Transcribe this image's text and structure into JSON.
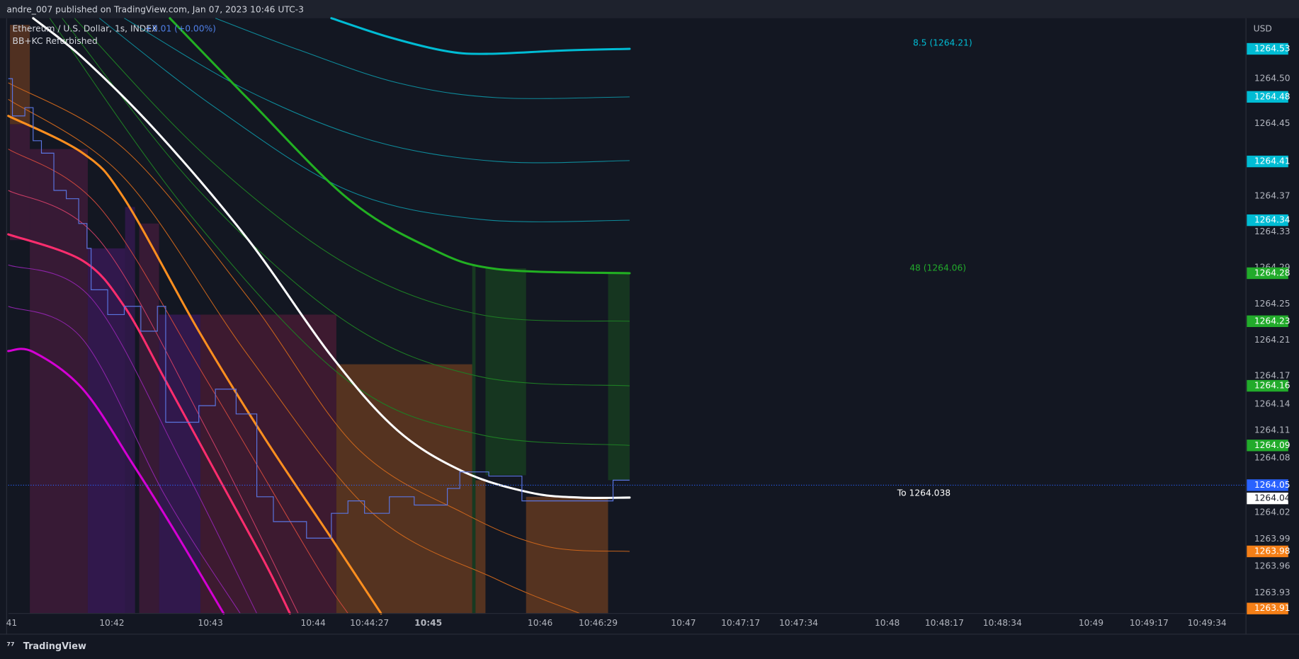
{
  "header": {
    "text": "andre_007 published on TradingView.com, Jan 07, 2023 10:46 UTC-3"
  },
  "legend": {
    "symbol": "Ethereum / U.S. Dollar, 1s, INDEX",
    "change": "+0.01 (+0.00%)",
    "indicator": "BB+KC Refurbished"
  },
  "annotations": [
    "8.5 (1264.21)",
    "48 (1264.06)",
    "To 1264.038"
  ],
  "price_axis": {
    "currency": "USD",
    "labels": [
      "1264.50",
      "1264.45",
      "1264.37",
      "1264.33",
      "1264.29",
      "1264.25",
      "1264.21",
      "1264.17",
      "1264.14",
      "1264.11",
      "1264.08",
      "1264.02",
      "1263.99",
      "1263.96",
      "1263.93"
    ],
    "badges": [
      {
        "label": "1264.53",
        "color": "#00bcd4"
      },
      {
        "label": "1264.48",
        "color": "#00bcd4"
      },
      {
        "label": "1264.41",
        "color": "#00bcd4"
      },
      {
        "label": "1264.34",
        "color": "#00bcd4"
      },
      {
        "label": "1264.28",
        "color": "#22ab2b"
      },
      {
        "label": "1264.23",
        "color": "#22ab2b"
      },
      {
        "label": "1264.16",
        "color": "#22ab2b"
      },
      {
        "label": "1264.09",
        "color": "#22ab2b"
      },
      {
        "label": "1264.05",
        "color": "#2962ff"
      },
      {
        "label": "1264.04",
        "color": "#ffffff"
      },
      {
        "label": "1263.98",
        "color": "#f57f17"
      },
      {
        "label": "1263.91",
        "color": "#f57f17"
      }
    ]
  },
  "time_axis": {
    "labels": [
      "41",
      "10:42",
      "10:43",
      "10:44",
      "10:44:27",
      "10:45",
      "10:46",
      "10:46:29",
      "10:47",
      "10:47:17",
      "10:47:34",
      "10:48",
      "10:48:17",
      "10:48:34",
      "10:49",
      "10:49:17",
      "10:49:34"
    ]
  },
  "footer": {
    "brand": "TradingView"
  }
}
